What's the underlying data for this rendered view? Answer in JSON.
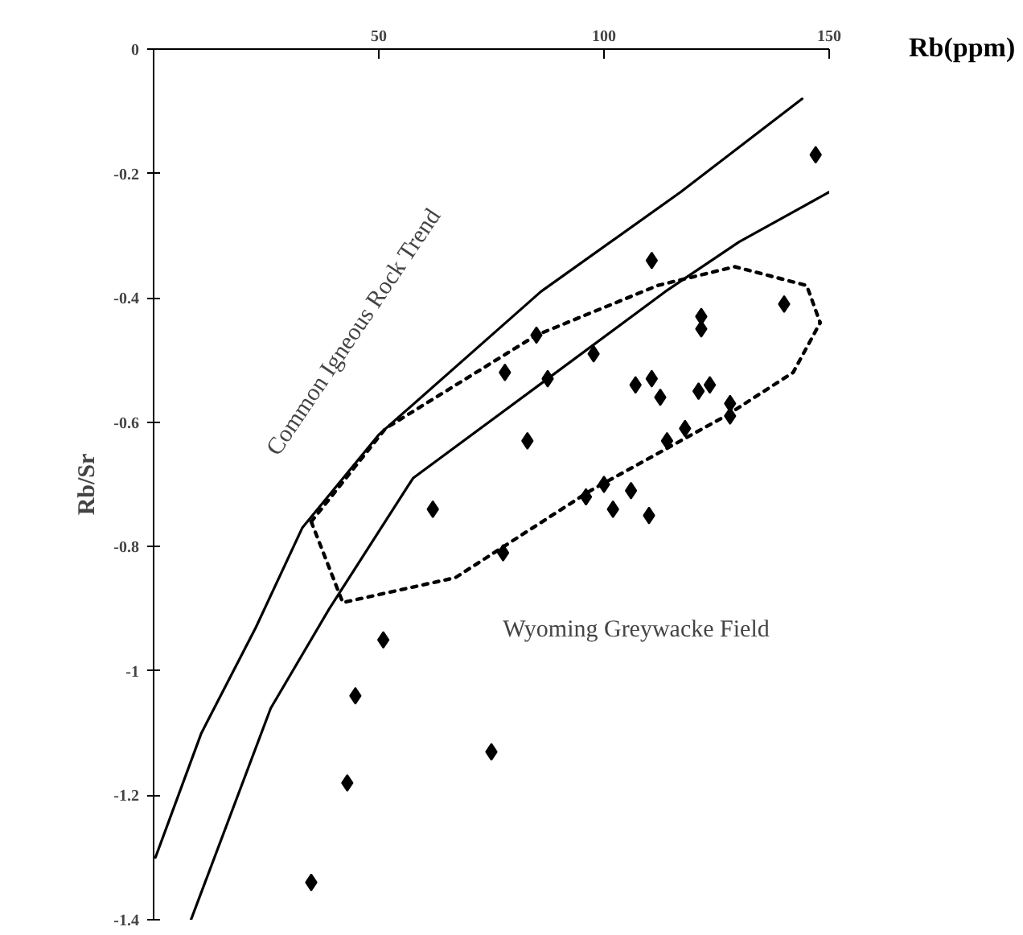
{
  "chart_data": {
    "type": "scatter",
    "xlabel": "Rb(ppm)",
    "ylabel": "Rb/Sr",
    "xlim": [
      0,
      150
    ],
    "ylim": [
      -1.4,
      0
    ],
    "xticks": [
      50,
      100,
      150
    ],
    "yticks": [
      0,
      -0.2,
      -0.4,
      -0.6,
      -0.8,
      -1,
      -1.2,
      -1.4
    ],
    "grid": false,
    "annotations": [
      "Common Igneous Rock Trend",
      "Wyoming Greywacke Field"
    ],
    "series": [
      {
        "marker": "diamond",
        "color": "#000000",
        "x": [
          147,
          110.6,
          140,
          121.6,
          121.6,
          85,
          78,
          87.5,
          97.7,
          107,
          110.6,
          112.5,
          121,
          123.5,
          128,
          128,
          83,
          114,
          118,
          62,
          96,
          100,
          102,
          106,
          110,
          77.6,
          51,
          44.8,
          75,
          43,
          35
        ],
        "values": [
          -0.17,
          -0.34,
          -0.41,
          -0.43,
          -0.45,
          -0.46,
          -0.52,
          -0.53,
          -0.49,
          -0.54,
          -0.53,
          -0.56,
          -0.55,
          -0.54,
          -0.57,
          -0.59,
          -0.63,
          -0.63,
          -0.61,
          -0.74,
          -0.72,
          -0.7,
          -0.74,
          -0.71,
          -0.75,
          -0.81,
          -0.95,
          -1.04,
          -1.13,
          -1.18,
          -1.34
        ]
      },
      {
        "type": "line",
        "line_style": "solid",
        "color": "#000000",
        "x": [
          0.4,
          10.6,
          22.7,
          33,
          50,
          86,
          117,
          144
        ],
        "values": [
          -1.3,
          -1.1,
          -0.93,
          -0.77,
          -0.62,
          -0.39,
          -0.23,
          -0.08
        ]
      },
      {
        "type": "line",
        "line_style": "solid",
        "color": "#000000",
        "x": [
          8.3,
          26,
          39,
          57.6,
          87.5,
          113.6,
          130,
          150
        ],
        "values": [
          -1.4,
          -1.06,
          -0.9,
          -0.69,
          -0.53,
          -0.39,
          -0.31,
          -0.23
        ]
      },
      {
        "type": "line",
        "line_style": "dotted",
        "color": "#000000",
        "x": [
          35,
          42,
          67,
          97,
          127,
          142,
          148
        ],
        "values": [
          -0.76,
          -0.89,
          -0.85,
          -0.71,
          -0.59,
          -0.52,
          -0.44
        ]
      },
      {
        "type": "line",
        "line_style": "dotted",
        "color": "#000000",
        "x": [
          35,
          51.5,
          85,
          112,
          129,
          145,
          148
        ],
        "values": [
          -0.76,
          -0.61,
          -0.46,
          -0.38,
          -0.35,
          -0.38,
          -0.44
        ]
      }
    ]
  }
}
